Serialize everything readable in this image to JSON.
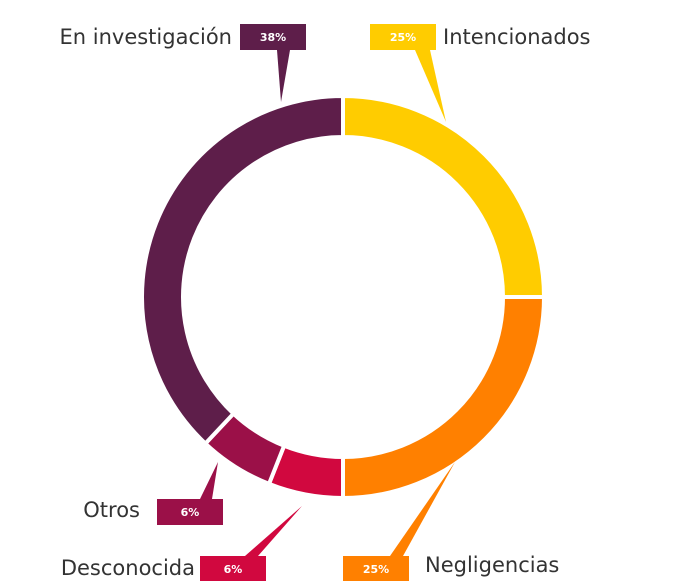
{
  "chart_data": {
    "type": "donut",
    "categories": [
      "Intencionados",
      "Negligencias",
      "Desconocida",
      "Otros",
      "En investigación"
    ],
    "values": [
      25,
      25,
      6,
      6,
      38
    ],
    "value_labels": [
      "25%",
      "25%",
      "6%",
      "6%",
      "38%"
    ],
    "colors": [
      "#ffcc00",
      "#ff8000",
      "#d1083f",
      "#9b1048",
      "#5e1e4a"
    ]
  }
}
